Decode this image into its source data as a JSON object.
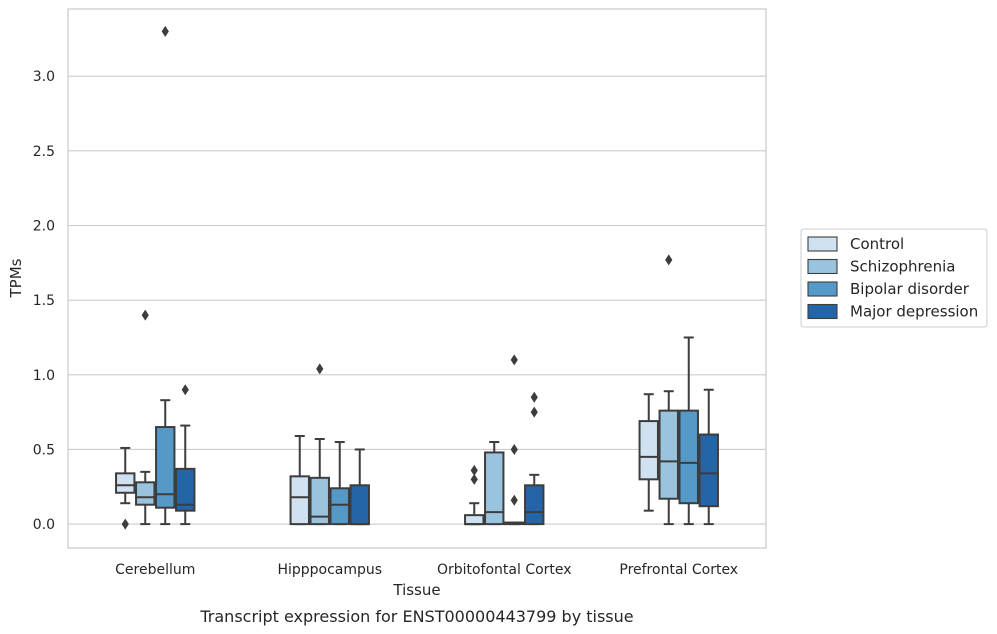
{
  "caption": "Transcript expression for ENST00000443799 by tissue",
  "chart_data": {
    "type": "box",
    "title": "",
    "xlabel": "Tissue",
    "ylabel": "TPMs",
    "ylim": [
      -0.16,
      3.45
    ],
    "yticks": [
      0.0,
      0.5,
      1.0,
      1.5,
      2.0,
      2.5,
      3.0
    ],
    "ytick_labels": [
      "0.0",
      "0.5",
      "1.0",
      "1.5",
      "2.0",
      "2.5",
      "3.0"
    ],
    "grid": "horizontal",
    "legend_position": "right",
    "categories": [
      "Cerebellum",
      "Hipppocampus",
      "Orbitofontal Cortex",
      "Prefrontal Cortex"
    ],
    "series": [
      {
        "name": "Control",
        "color": "#d0e1f2",
        "boxes": [
          {
            "whislo": 0.14,
            "q1": 0.21,
            "med": 0.26,
            "q3": 0.34,
            "whishi": 0.51,
            "fliers": [
              0.0
            ]
          },
          {
            "whislo": 0.0,
            "q1": 0.0,
            "med": 0.18,
            "q3": 0.32,
            "whishi": 0.59,
            "fliers": []
          },
          {
            "whislo": 0.0,
            "q1": 0.0,
            "med": 0.0,
            "q3": 0.06,
            "whishi": 0.14,
            "fliers": [
              0.3,
              0.36
            ]
          },
          {
            "whislo": 0.09,
            "q1": 0.3,
            "med": 0.45,
            "q3": 0.69,
            "whishi": 0.87,
            "fliers": []
          }
        ]
      },
      {
        "name": "Schizophrenia",
        "color": "#9ac4de",
        "boxes": [
          {
            "whislo": 0.0,
            "q1": 0.13,
            "med": 0.18,
            "q3": 0.28,
            "whishi": 0.35,
            "fliers": [
              1.4
            ]
          },
          {
            "whislo": 0.0,
            "q1": 0.0,
            "med": 0.05,
            "q3": 0.31,
            "whishi": 0.57,
            "fliers": [
              1.04
            ]
          },
          {
            "whislo": 0.0,
            "q1": 0.0,
            "med": 0.08,
            "q3": 0.48,
            "whishi": 0.55,
            "fliers": []
          },
          {
            "whislo": 0.0,
            "q1": 0.17,
            "med": 0.42,
            "q3": 0.76,
            "whishi": 0.89,
            "fliers": [
              1.77
            ]
          }
        ]
      },
      {
        "name": "Bipolar disorder",
        "color": "#5599c9",
        "boxes": [
          {
            "whislo": 0.0,
            "q1": 0.11,
            "med": 0.2,
            "q3": 0.65,
            "whishi": 0.83,
            "fliers": [
              3.3
            ]
          },
          {
            "whislo": 0.0,
            "q1": 0.0,
            "med": 0.13,
            "q3": 0.24,
            "whishi": 0.55,
            "fliers": []
          },
          {
            "whislo": 0.0,
            "q1": 0.0,
            "med": 0.01,
            "q3": 0.01,
            "whishi": 0.01,
            "fliers": [
              0.16,
              0.5,
              1.1
            ]
          },
          {
            "whislo": 0.0,
            "q1": 0.14,
            "med": 0.41,
            "q3": 0.76,
            "whishi": 1.25,
            "fliers": []
          }
        ]
      },
      {
        "name": "Major depression",
        "color": "#2465a8",
        "boxes": [
          {
            "whislo": 0.0,
            "q1": 0.09,
            "med": 0.13,
            "q3": 0.37,
            "whishi": 0.66,
            "fliers": [
              0.9
            ]
          },
          {
            "whislo": 0.0,
            "q1": 0.0,
            "med": 0.0,
            "q3": 0.26,
            "whishi": 0.5,
            "fliers": []
          },
          {
            "whislo": 0.0,
            "q1": 0.0,
            "med": 0.08,
            "q3": 0.26,
            "whishi": 0.33,
            "fliers": [
              0.75,
              0.85
            ]
          },
          {
            "whislo": 0.0,
            "q1": 0.12,
            "med": 0.34,
            "q3": 0.6,
            "whishi": 0.9,
            "fliers": []
          }
        ]
      }
    ]
  }
}
